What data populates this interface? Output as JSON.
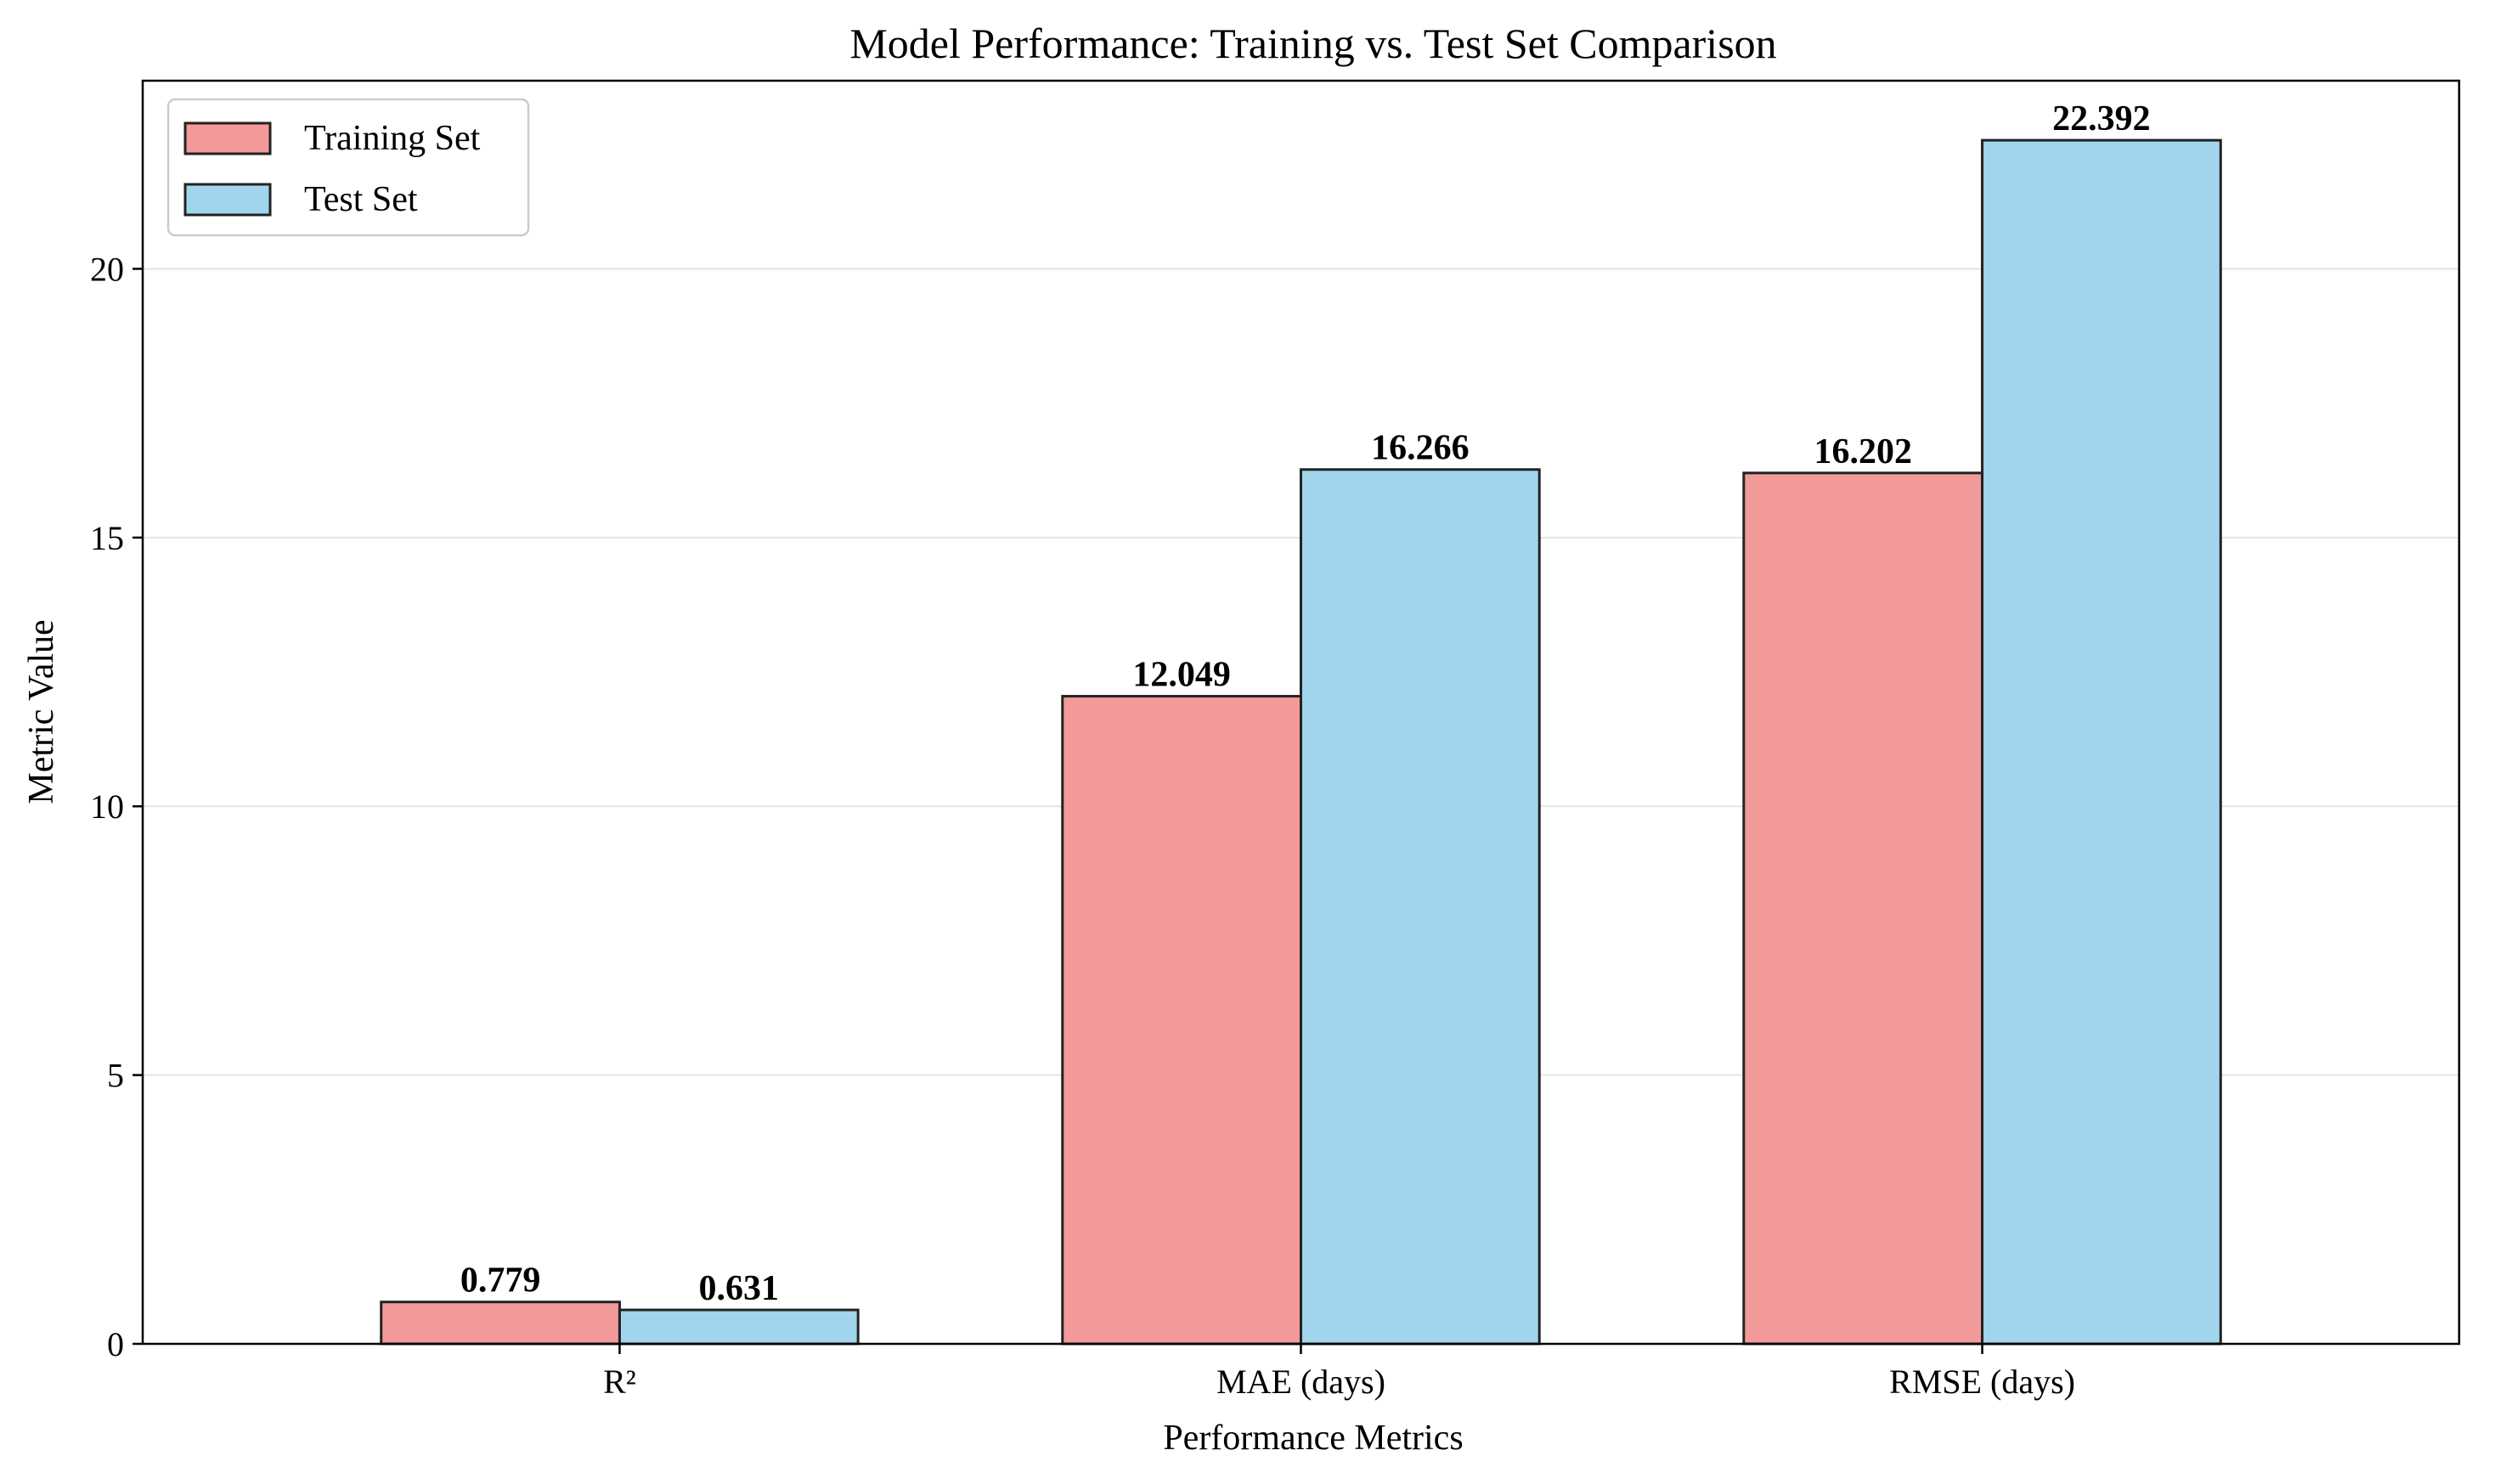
{
  "chart_data": {
    "type": "bar",
    "title": "Model Performance: Training vs. Test Set Comparison",
    "xlabel": "Performance Metrics",
    "ylabel": "Metric Value",
    "categories": [
      "R²",
      "MAE (days)",
      "RMSE (days)"
    ],
    "series": [
      {
        "name": "Training Set",
        "values": [
          0.779,
          12.049,
          16.202
        ],
        "labels": [
          "0.779",
          "12.049",
          "16.202"
        ],
        "color": "#f29a99"
      },
      {
        "name": "Test Set",
        "values": [
          0.631,
          16.266,
          22.392
        ],
        "labels": [
          "0.631",
          "16.266",
          "22.392"
        ],
        "color": "#a0d5ed"
      }
    ],
    "ylim": [
      0,
      23.5
    ],
    "yticks": [
      0,
      5,
      10,
      15,
      20
    ],
    "ytick_labels": [
      "0",
      "5",
      "10",
      "15",
      "20"
    ],
    "grid": "y",
    "legend": "top-left",
    "edge_color": "#222222"
  }
}
